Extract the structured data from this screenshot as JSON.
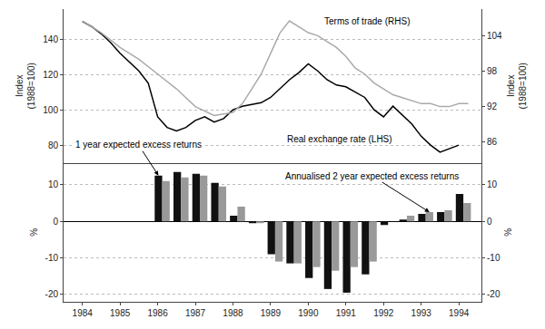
{
  "chart_data": [
    {
      "type": "line",
      "series": [
        {
          "name": "Real exchange rate (LHS)",
          "color": "#000000",
          "x": [
            1984.0,
            1984.25,
            1984.5,
            1984.75,
            1985.0,
            1985.25,
            1985.5,
            1985.75,
            1986.0,
            1986.25,
            1986.5,
            1986.75,
            1987.0,
            1987.25,
            1987.5,
            1987.75,
            1988.0,
            1988.25,
            1988.5,
            1988.75,
            1989.0,
            1989.25,
            1989.5,
            1989.75,
            1990.0,
            1990.25,
            1990.5,
            1990.75,
            1991.0,
            1991.25,
            1991.5,
            1991.75,
            1992.0,
            1992.25,
            1992.5,
            1992.75,
            1993.0,
            1993.25,
            1993.5,
            1993.75,
            1994.0
          ],
          "values": [
            150,
            147,
            143,
            138,
            132,
            127,
            122,
            115,
            96,
            90,
            88,
            90,
            94,
            96,
            93,
            95,
            100,
            102,
            103,
            104,
            107,
            112,
            117,
            121,
            126,
            122,
            117,
            114,
            113,
            110,
            107,
            100,
            96,
            102,
            97,
            92,
            85,
            80,
            76,
            78,
            80
          ]
        },
        {
          "name": "Terms of trade (RHS)",
          "color": "#aaaaaa",
          "axis": "y2",
          "x": [
            1984.0,
            1984.5,
            1985.0,
            1985.5,
            1986.0,
            1986.5,
            1987.0,
            1987.5,
            1988.0,
            1988.25,
            1988.5,
            1988.75,
            1989.0,
            1989.25,
            1989.5,
            1989.75,
            1990.0,
            1990.25,
            1990.5,
            1990.75,
            1991.0,
            1991.25,
            1991.5,
            1991.75,
            1992.0,
            1992.25,
            1992.5,
            1992.75,
            1993.0,
            1993.25,
            1993.5,
            1993.75,
            1994.0,
            1994.25
          ],
          "values": [
            106.5,
            104.5,
            102.0,
            100.0,
            97.5,
            95.0,
            92.0,
            90.5,
            91.0,
            92.5,
            95.0,
            97.5,
            101.0,
            104.5,
            106.5,
            105.5,
            104.5,
            104.0,
            103.0,
            102.0,
            100.5,
            98.5,
            97.5,
            96.0,
            95.0,
            94.0,
            93.5,
            93.0,
            92.5,
            92.5,
            92.0,
            92.0,
            92.5,
            92.5
          ]
        }
      ],
      "xlim": [
        1983.5,
        1994.6
      ],
      "ylim": [
        70,
        157
      ],
      "yticks": [
        80,
        100,
        120,
        140
      ],
      "y2lim": [
        82.5,
        108.5
      ],
      "y2ticks": [
        86,
        92,
        98,
        104
      ],
      "ylabel": "Index\n(1988=100)",
      "y2label": "Index\n(1988=100)",
      "grid": true,
      "tick_labels": "y"
    },
    {
      "type": "bar",
      "x": [
        1986.12,
        1986.62,
        1987.12,
        1987.62,
        1988.12,
        1988.62,
        1989.12,
        1989.62,
        1990.12,
        1990.62,
        1991.12,
        1991.62,
        1992.12,
        1992.62,
        1993.12,
        1993.62,
        1994.12
      ],
      "series": [
        {
          "name": "1 year expected excess returns",
          "color": "#111111",
          "values": [
            12.5,
            13.5,
            13.0,
            10.5,
            1.5,
            -0.5,
            -9.0,
            -11.5,
            -15.5,
            -18.5,
            -19.5,
            -14.5,
            -1.0,
            0.5,
            2.0,
            2.5,
            7.5
          ]
        },
        {
          "name": "Annualised 2 year expected excess returns",
          "color": "#999999",
          "values": [
            11.0,
            12.0,
            12.5,
            9.5,
            4.0,
            -0.5,
            -11.0,
            -11.5,
            -12.5,
            -13.5,
            -12.5,
            -11.0,
            0.0,
            1.5,
            2.5,
            3.0,
            5.0
          ]
        }
      ],
      "xlim": [
        1983.5,
        1994.6
      ],
      "xticks": [
        1984,
        1985,
        1986,
        1987,
        1988,
        1989,
        1990,
        1991,
        1992,
        1993,
        1994
      ],
      "ylim": [
        -22,
        16
      ],
      "yticks": [
        -20,
        -10,
        0,
        10
      ],
      "y2lim": [
        -22,
        16
      ],
      "y2ticks": [
        -20,
        -10,
        0,
        10
      ],
      "ylabel": "%",
      "y2label": "%",
      "grid": true
    }
  ]
}
